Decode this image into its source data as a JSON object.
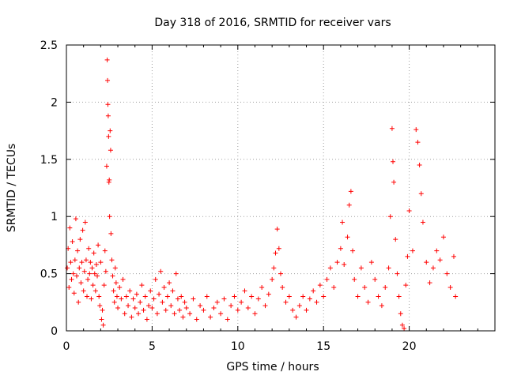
{
  "chart_data": {
    "type": "scatter",
    "title": "Day 318 of 2016, SRMTID for receiver vars",
    "xlabel": "GPS time / hours",
    "ylabel": "SRMTID / TECUs",
    "xlim": [
      0,
      25
    ],
    "ylim": [
      0,
      2.5
    ],
    "x_ticks": [
      0,
      5,
      10,
      15,
      20
    ],
    "x_tick_labels": [
      "0",
      "5",
      "10",
      "15",
      "20"
    ],
    "y_ticks": [
      0,
      0.5,
      1,
      1.5,
      2,
      2.5
    ],
    "y_tick_labels": [
      "0",
      "0.5",
      "1",
      "1.5",
      "2",
      "2.5"
    ],
    "grid": true,
    "marker": "+",
    "series": [
      {
        "name": "SRMTID",
        "color": "#ff0000",
        "points": [
          [
            0.05,
            0.55
          ],
          [
            0.1,
            0.72
          ],
          [
            0.15,
            0.38
          ],
          [
            0.2,
            0.9
          ],
          [
            0.25,
            0.6
          ],
          [
            0.3,
            0.45
          ],
          [
            0.35,
            0.78
          ],
          [
            0.4,
            0.5
          ],
          [
            0.45,
            0.33
          ],
          [
            0.5,
            0.62
          ],
          [
            0.55,
            0.98
          ],
          [
            0.6,
            0.48
          ],
          [
            0.65,
            0.7
          ],
          [
            0.7,
            0.25
          ],
          [
            0.75,
            0.55
          ],
          [
            0.8,
            0.8
          ],
          [
            0.85,
            0.42
          ],
          [
            0.9,
            0.6
          ],
          [
            0.95,
            0.88
          ],
          [
            1.0,
            0.35
          ],
          [
            1.05,
            0.52
          ],
          [
            1.1,
            0.95
          ],
          [
            1.15,
            0.62
          ],
          [
            1.2,
            0.3
          ],
          [
            1.25,
            0.45
          ],
          [
            1.3,
            0.72
          ],
          [
            1.35,
            0.5
          ],
          [
            1.4,
            0.6
          ],
          [
            1.45,
            0.28
          ],
          [
            1.5,
            0.55
          ],
          [
            1.55,
            0.4
          ],
          [
            1.6,
            0.68
          ],
          [
            1.65,
            0.5
          ],
          [
            1.7,
            0.35
          ],
          [
            1.75,
            0.58
          ],
          [
            1.8,
            0.48
          ],
          [
            1.85,
            0.75
          ],
          [
            1.9,
            0.3
          ],
          [
            1.95,
            0.22
          ],
          [
            2.0,
            0.6
          ],
          [
            2.05,
            0.1
          ],
          [
            2.1,
            0.18
          ],
          [
            2.15,
            0.05
          ],
          [
            2.2,
            0.4
          ],
          [
            2.25,
            0.7
          ],
          [
            2.3,
            0.52
          ],
          [
            2.35,
            1.44
          ],
          [
            2.38,
            2.37
          ],
          [
            2.4,
            2.19
          ],
          [
            2.42,
            1.98
          ],
          [
            2.44,
            1.88
          ],
          [
            2.46,
            1.7
          ],
          [
            2.48,
            1.3
          ],
          [
            2.5,
            1.32
          ],
          [
            2.52,
            1.0
          ],
          [
            2.55,
            1.75
          ],
          [
            2.58,
            1.58
          ],
          [
            2.6,
            0.85
          ],
          [
            2.65,
            0.62
          ],
          [
            2.7,
            0.48
          ],
          [
            2.75,
            0.35
          ],
          [
            2.8,
            0.25
          ],
          [
            2.85,
            0.55
          ],
          [
            2.9,
            0.42
          ],
          [
            2.95,
            0.3
          ],
          [
            3.0,
            0.2
          ],
          [
            3.1,
            0.38
          ],
          [
            3.2,
            0.28
          ],
          [
            3.3,
            0.45
          ],
          [
            3.4,
            0.15
          ],
          [
            3.5,
            0.3
          ],
          [
            3.6,
            0.22
          ],
          [
            3.7,
            0.35
          ],
          [
            3.8,
            0.12
          ],
          [
            3.9,
            0.28
          ],
          [
            4.0,
            0.2
          ],
          [
            4.1,
            0.32
          ],
          [
            4.2,
            0.15
          ],
          [
            4.3,
            0.25
          ],
          [
            4.4,
            0.4
          ],
          [
            4.5,
            0.18
          ],
          [
            4.6,
            0.3
          ],
          [
            4.7,
            0.1
          ],
          [
            4.8,
            0.22
          ],
          [
            4.9,
            0.35
          ],
          [
            5.0,
            0.2
          ],
          [
            5.1,
            0.28
          ],
          [
            5.2,
            0.45
          ],
          [
            5.3,
            0.15
          ],
          [
            5.4,
            0.32
          ],
          [
            5.5,
            0.52
          ],
          [
            5.6,
            0.25
          ],
          [
            5.7,
            0.38
          ],
          [
            5.8,
            0.18
          ],
          [
            5.9,
            0.3
          ],
          [
            6.0,
            0.42
          ],
          [
            6.1,
            0.22
          ],
          [
            6.2,
            0.35
          ],
          [
            6.3,
            0.15
          ],
          [
            6.4,
            0.5
          ],
          [
            6.5,
            0.28
          ],
          [
            6.6,
            0.18
          ],
          [
            6.7,
            0.3
          ],
          [
            6.8,
            0.12
          ],
          [
            6.9,
            0.25
          ],
          [
            7.0,
            0.2
          ],
          [
            7.2,
            0.15
          ],
          [
            7.4,
            0.28
          ],
          [
            7.6,
            0.1
          ],
          [
            7.8,
            0.22
          ],
          [
            8.0,
            0.18
          ],
          [
            8.2,
            0.3
          ],
          [
            8.4,
            0.12
          ],
          [
            8.6,
            0.2
          ],
          [
            8.8,
            0.25
          ],
          [
            9.0,
            0.15
          ],
          [
            9.2,
            0.28
          ],
          [
            9.4,
            0.1
          ],
          [
            9.6,
            0.22
          ],
          [
            9.8,
            0.3
          ],
          [
            10.0,
            0.18
          ],
          [
            10.2,
            0.25
          ],
          [
            10.4,
            0.35
          ],
          [
            10.6,
            0.2
          ],
          [
            10.8,
            0.3
          ],
          [
            11.0,
            0.15
          ],
          [
            11.2,
            0.28
          ],
          [
            11.4,
            0.38
          ],
          [
            11.6,
            0.22
          ],
          [
            11.8,
            0.32
          ],
          [
            12.0,
            0.45
          ],
          [
            12.1,
            0.55
          ],
          [
            12.2,
            0.68
          ],
          [
            12.3,
            0.89
          ],
          [
            12.4,
            0.72
          ],
          [
            12.5,
            0.5
          ],
          [
            12.6,
            0.38
          ],
          [
            12.8,
            0.25
          ],
          [
            13.0,
            0.3
          ],
          [
            13.2,
            0.18
          ],
          [
            13.4,
            0.12
          ],
          [
            13.6,
            0.22
          ],
          [
            13.8,
            0.3
          ],
          [
            14.0,
            0.18
          ],
          [
            14.2,
            0.28
          ],
          [
            14.4,
            0.35
          ],
          [
            14.6,
            0.25
          ],
          [
            14.8,
            0.4
          ],
          [
            15.0,
            0.3
          ],
          [
            15.2,
            0.45
          ],
          [
            15.4,
            0.55
          ],
          [
            15.6,
            0.38
          ],
          [
            15.8,
            0.6
          ],
          [
            16.0,
            0.72
          ],
          [
            16.1,
            0.95
          ],
          [
            16.2,
            0.58
          ],
          [
            16.4,
            0.82
          ],
          [
            16.5,
            1.1
          ],
          [
            16.6,
            1.22
          ],
          [
            16.7,
            0.7
          ],
          [
            16.8,
            0.45
          ],
          [
            17.0,
            0.3
          ],
          [
            17.2,
            0.55
          ],
          [
            17.4,
            0.38
          ],
          [
            17.6,
            0.25
          ],
          [
            17.8,
            0.6
          ],
          [
            18.0,
            0.45
          ],
          [
            18.2,
            0.3
          ],
          [
            18.4,
            0.22
          ],
          [
            18.6,
            0.38
          ],
          [
            18.8,
            0.55
          ],
          [
            18.9,
            1.0
          ],
          [
            19.0,
            1.77
          ],
          [
            19.05,
            1.48
          ],
          [
            19.1,
            1.3
          ],
          [
            19.2,
            0.8
          ],
          [
            19.3,
            0.5
          ],
          [
            19.4,
            0.3
          ],
          [
            19.5,
            0.15
          ],
          [
            19.6,
            0.05
          ],
          [
            19.7,
            0.02
          ],
          [
            19.8,
            0.4
          ],
          [
            19.9,
            0.65
          ],
          [
            20.0,
            1.05
          ],
          [
            20.2,
            0.7
          ],
          [
            20.4,
            1.76
          ],
          [
            20.5,
            1.65
          ],
          [
            20.6,
            1.45
          ],
          [
            20.7,
            1.2
          ],
          [
            20.8,
            0.95
          ],
          [
            21.0,
            0.6
          ],
          [
            21.2,
            0.42
          ],
          [
            21.4,
            0.55
          ],
          [
            21.6,
            0.7
          ],
          [
            21.8,
            0.62
          ],
          [
            22.0,
            0.82
          ],
          [
            22.2,
            0.5
          ],
          [
            22.4,
            0.38
          ],
          [
            22.6,
            0.65
          ],
          [
            22.7,
            0.3
          ]
        ]
      }
    ]
  }
}
